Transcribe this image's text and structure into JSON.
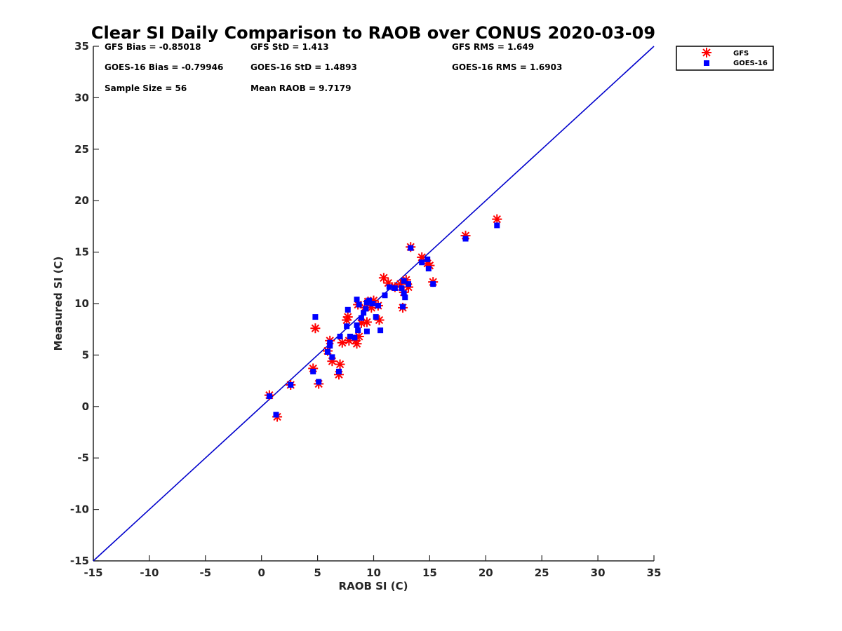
{
  "chart_data": {
    "type": "scatter",
    "title": "Clear SI Daily Comparison to RAOB over CONUS 2020-03-09",
    "xlabel": "RAOB SI (C)",
    "ylabel": "Measured SI (C)",
    "xlim": [
      -15,
      35
    ],
    "ylim": [
      -15,
      35
    ],
    "xticks": [
      "-15",
      "-10",
      "-5",
      "0",
      "5",
      "10",
      "15",
      "20",
      "25",
      "30",
      "35"
    ],
    "yticks": [
      "-15",
      "-10",
      "-5",
      "0",
      "5",
      "10",
      "15",
      "20",
      "25",
      "30",
      "35"
    ],
    "grid": false,
    "legend_position": "outside-top-right",
    "reference_line": {
      "from": [
        -15,
        -15
      ],
      "to": [
        35,
        35
      ],
      "color": "#0000cc"
    },
    "stats": {
      "gfs_bias": "GFS Bias = -0.85018",
      "gfs_std": "GFS StD = 1.413",
      "gfs_rms": "GFS RMS = 1.649",
      "goes_bias": "GOES-16 Bias = -0.79946",
      "goes_std": "GOES-16 StD = 1.4893",
      "goes_rms": "GOES-16 RMS = 1.6903",
      "sample_size": "Sample Size = 56",
      "mean_raob": "Mean RAOB = 9.7179"
    },
    "series": [
      {
        "name": "GFS",
        "marker": "asterisk",
        "color": "#ff0000",
        "points": [
          [
            0.7,
            1.1
          ],
          [
            1.4,
            -1.0
          ],
          [
            2.6,
            2.1
          ],
          [
            4.6,
            3.7
          ],
          [
            4.8,
            7.6
          ],
          [
            5.1,
            2.2
          ],
          [
            5.9,
            5.4
          ],
          [
            6.1,
            6.4
          ],
          [
            6.3,
            4.4
          ],
          [
            6.9,
            3.1
          ],
          [
            7.0,
            4.1
          ],
          [
            7.2,
            6.2
          ],
          [
            7.6,
            8.4
          ],
          [
            7.7,
            8.7
          ],
          [
            7.8,
            6.4
          ],
          [
            8.4,
            6.4
          ],
          [
            8.5,
            6.1
          ],
          [
            8.6,
            9.9
          ],
          [
            8.7,
            6.8
          ],
          [
            8.9,
            8.1
          ],
          [
            9.2,
            9.6
          ],
          [
            9.4,
            8.2
          ],
          [
            9.5,
            10.2
          ],
          [
            9.8,
            9.6
          ],
          [
            10.0,
            10.3
          ],
          [
            10.4,
            9.8
          ],
          [
            10.5,
            8.4
          ],
          [
            10.9,
            12.5
          ],
          [
            11.3,
            12.0
          ],
          [
            11.9,
            11.6
          ],
          [
            12.4,
            11.9
          ],
          [
            12.6,
            9.6
          ],
          [
            12.7,
            11.1
          ],
          [
            12.9,
            12.3
          ],
          [
            13.1,
            11.6
          ],
          [
            13.3,
            15.5
          ],
          [
            14.3,
            14.5
          ],
          [
            14.8,
            13.9
          ],
          [
            15.0,
            13.7
          ],
          [
            15.3,
            12.1
          ],
          [
            18.2,
            16.6
          ],
          [
            21.0,
            18.2
          ]
        ]
      },
      {
        "name": "GOES-16",
        "marker": "square",
        "color": "#0000ff",
        "points": [
          [
            0.7,
            1.0
          ],
          [
            1.3,
            -0.8
          ],
          [
            2.6,
            2.1
          ],
          [
            4.6,
            3.4
          ],
          [
            4.8,
            8.7
          ],
          [
            5.1,
            2.4
          ],
          [
            5.9,
            5.3
          ],
          [
            6.1,
            6.2
          ],
          [
            6.1,
            5.9
          ],
          [
            6.3,
            4.8
          ],
          [
            6.9,
            3.4
          ],
          [
            7.0,
            6.8
          ],
          [
            7.6,
            7.8
          ],
          [
            7.7,
            9.4
          ],
          [
            7.9,
            6.8
          ],
          [
            8.3,
            6.7
          ],
          [
            8.5,
            10.4
          ],
          [
            8.5,
            7.9
          ],
          [
            8.6,
            7.4
          ],
          [
            8.7,
            9.9
          ],
          [
            8.9,
            8.6
          ],
          [
            9.1,
            9.1
          ],
          [
            9.3,
            9.5
          ],
          [
            9.4,
            10.1
          ],
          [
            9.4,
            7.3
          ],
          [
            9.6,
            10.3
          ],
          [
            9.9,
            10.0
          ],
          [
            10.2,
            8.7
          ],
          [
            10.4,
            9.8
          ],
          [
            10.6,
            7.4
          ],
          [
            11.0,
            10.8
          ],
          [
            11.4,
            11.6
          ],
          [
            11.9,
            11.5
          ],
          [
            12.5,
            11.5
          ],
          [
            12.6,
            9.7
          ],
          [
            12.7,
            11.0
          ],
          [
            12.8,
            10.6
          ],
          [
            12.7,
            12.2
          ],
          [
            13.1,
            11.9
          ],
          [
            13.3,
            15.4
          ],
          [
            14.3,
            14.0
          ],
          [
            14.8,
            14.3
          ],
          [
            14.9,
            13.4
          ],
          [
            15.3,
            11.9
          ],
          [
            18.2,
            16.3
          ],
          [
            21.0,
            17.6
          ]
        ]
      }
    ]
  }
}
